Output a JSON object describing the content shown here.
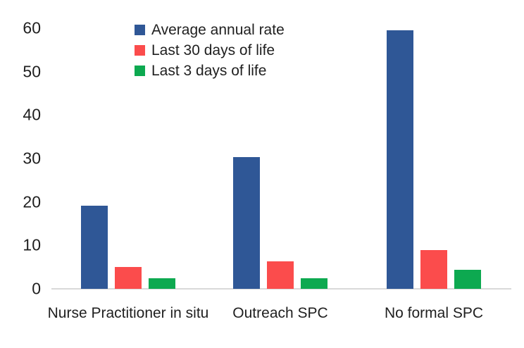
{
  "chart_data": {
    "type": "bar",
    "title": "",
    "xlabel": "",
    "ylabel": "",
    "categories": [
      "Nurse Practitioner in situ",
      "Outreach SPC",
      "No formal SPC"
    ],
    "series": [
      {
        "name": "Average annual rate",
        "color": "#2F5796",
        "values": [
          19.2,
          30.3,
          59.5
        ]
      },
      {
        "name": "Last 30 days of life",
        "color": "#FB4C4C",
        "values": [
          5.1,
          6.4,
          8.9
        ]
      },
      {
        "name": "Last 3 days of life",
        "color": "#0DA950",
        "values": [
          2.5,
          2.5,
          4.4
        ]
      }
    ],
    "y_ticks": [
      0,
      10,
      20,
      30,
      40,
      50,
      60
    ],
    "ylim": [
      0,
      60
    ],
    "grid": false,
    "legend_position": "top-left-vertical",
    "colors": {
      "axis_line": "#D9D9D9",
      "text": "#1F1F1F",
      "background": "#FFFFFF"
    }
  }
}
